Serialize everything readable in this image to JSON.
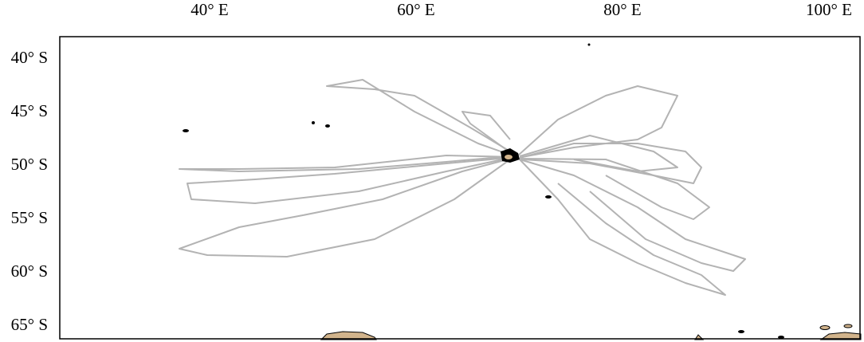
{
  "map": {
    "longitude_labels": [
      "40° E",
      "60° E",
      "80° E",
      "100° E"
    ],
    "latitude_labels": [
      "40° S",
      "45° S",
      "50° S",
      "55° S",
      "60° S",
      "65° S"
    ]
  }
}
